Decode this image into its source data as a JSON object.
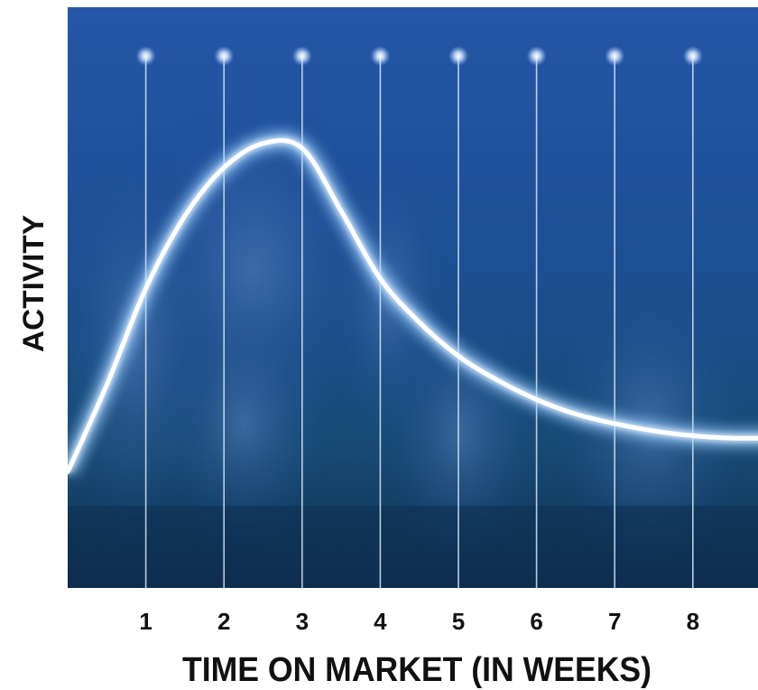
{
  "chart_data": {
    "type": "line",
    "title": "",
    "xlabel": "TIME ON MARKET (IN WEEKS)",
    "ylabel": "ACTIVITY",
    "x_ticks": [
      1,
      2,
      3,
      4,
      5,
      6,
      7,
      8
    ],
    "xlim": [
      0,
      9
    ],
    "ylim": [
      0,
      100
    ],
    "grid": "vertical lines at each week",
    "series": [
      {
        "x": [
          0,
          0.5,
          1,
          1.5,
          2,
          2.5,
          3,
          3.5,
          4,
          4.5,
          5,
          5.5,
          6,
          6.5,
          7,
          7.5,
          8,
          8.5,
          9
        ],
        "y": [
          24,
          42,
          62,
          77,
          87,
          92,
          91,
          78,
          64,
          55,
          48,
          43,
          39,
          36,
          34,
          32.5,
          31.5,
          31,
          31
        ]
      }
    ],
    "background": "photo of a crowd of people tinted blue",
    "colors": {
      "background_top": "#1a4a9a",
      "background_bottom": "#0e3058",
      "curve": "#ffffff",
      "glow": "#9fd0ff",
      "gridline": "#d8e6f5",
      "text": "#111111"
    }
  }
}
